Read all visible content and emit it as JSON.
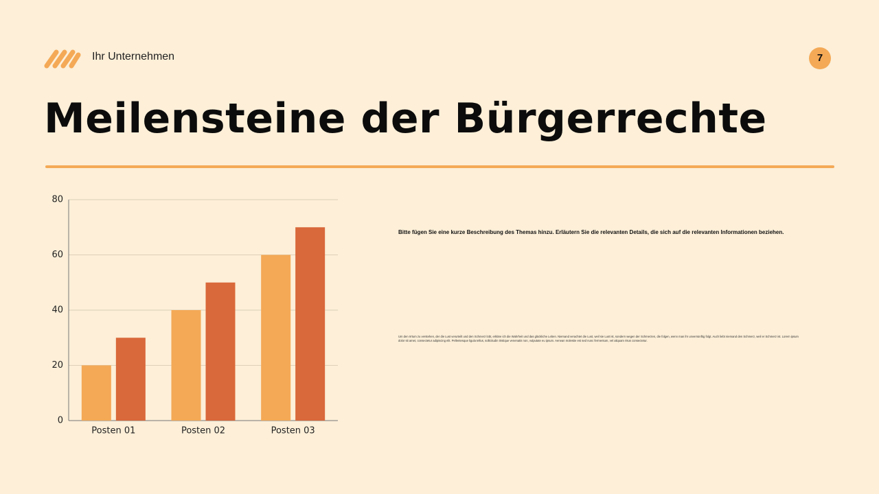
{
  "header": {
    "company": "Ihr Unternehmen",
    "page_number": "7"
  },
  "title": "Meilensteine der Bürgerrechte",
  "chart_data": {
    "type": "bar",
    "categories": [
      "Posten 01",
      "Posten 02",
      "Posten 03"
    ],
    "series": [
      {
        "color": "#f4a956",
        "values": [
          20,
          40,
          60
        ]
      },
      {
        "color": "#d9683a",
        "values": [
          30,
          50,
          70
        ]
      }
    ],
    "ylim": [
      0,
      80
    ],
    "yticks": [
      0,
      20,
      40,
      60,
      80
    ],
    "grid": true
  },
  "description": {
    "summary": "Bitte fügen Sie eine kurze Beschreibung des Themas hinzu. Erläutern Sie die relevanten Details, die sich auf die relevanten Informationen beziehen.",
    "text": "Um den Irrtum zu verstehen, der die Lust verurteilt und den Schmerz lobt, erkläre ich die Wahrheit und das glückliche Leben. Niemand verachtet die Lust, weil sie Lust ist, sondern wegen der Schmerzen, die folgen, wenn man ihr unvernünftig folgt. Auch liebt niemand den Schmerz, weil er Schmerz ist. Lorem ipsum dolor sit amet, consectetur adipiscing elit. Pellentesque ligula tellus, sollicitudin tristique venenatis non, vulputate eu ipsum. Aenean molestie est sed nunc fermentum, vel aliquam risus consectetur."
  }
}
